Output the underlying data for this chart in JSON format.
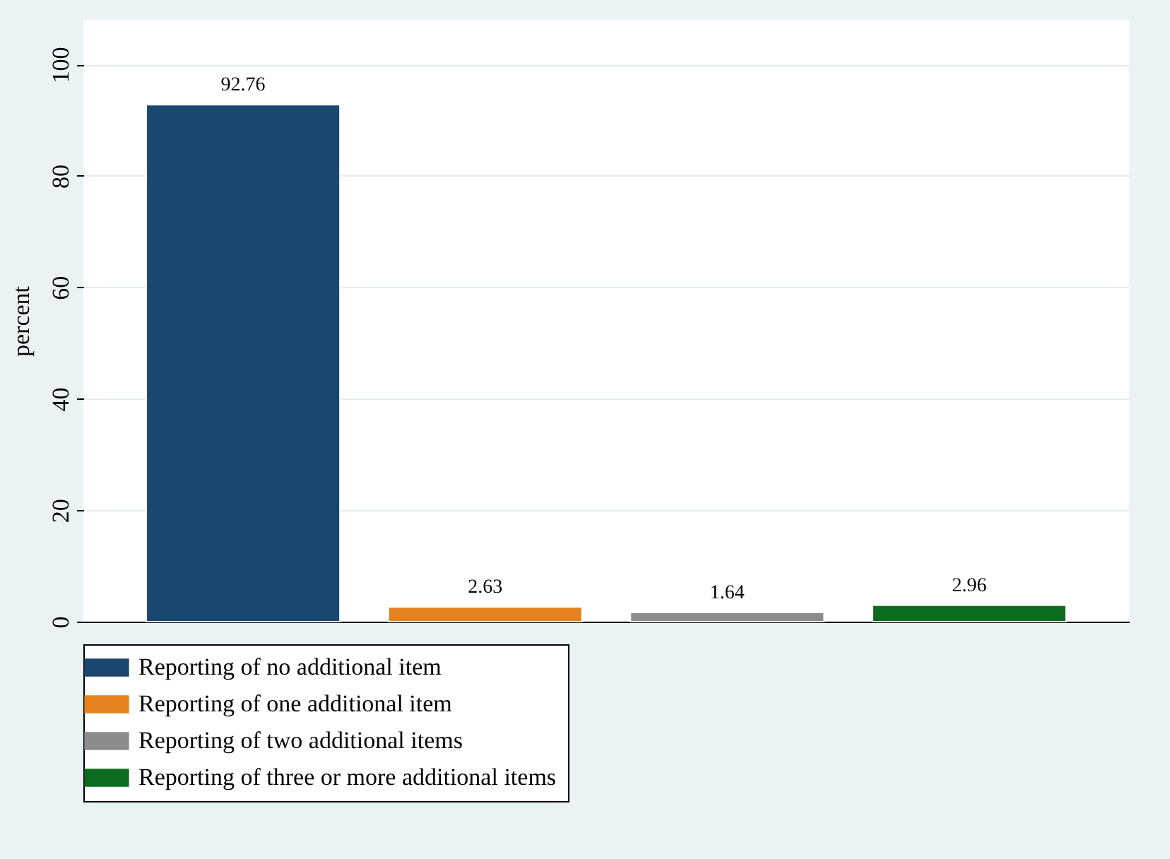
{
  "chart_data": {
    "type": "bar",
    "ylabel": "percent",
    "categories": [
      null
    ],
    "series": [
      {
        "name": "Reporting of no additional item",
        "color": "#1a476f",
        "values": [
          92.76
        ]
      },
      {
        "name": "Reporting of one additional item",
        "color": "#e5821f",
        "values": [
          2.63
        ]
      },
      {
        "name": "Reporting of two additional items",
        "color": "#8c8c8c",
        "values": [
          1.64
        ]
      },
      {
        "name": "Reporting of three or more additional items",
        "color": "#0b6b1e",
        "values": [
          2.96
        ]
      }
    ],
    "ylim": [
      0,
      108
    ],
    "yticks": [
      0,
      20,
      40,
      60,
      80,
      100
    ],
    "grid": "y",
    "legend": "bottom",
    "data_labels": true
  }
}
